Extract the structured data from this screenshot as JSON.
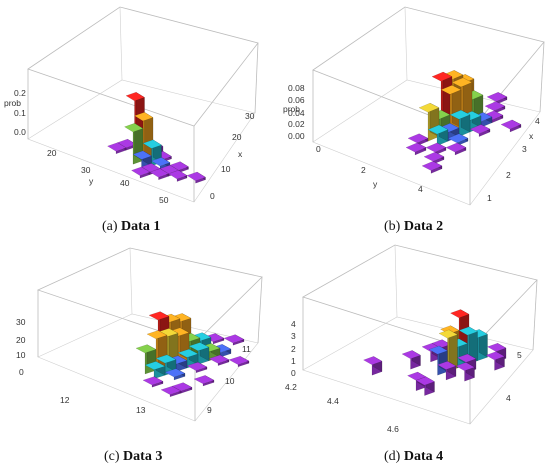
{
  "figure": {
    "panels": [
      {
        "id": "a",
        "caption_letter": "(a)",
        "caption_title": "Data 1"
      },
      {
        "id": "b",
        "caption_letter": "(b)",
        "caption_title": "Data 2"
      },
      {
        "id": "c",
        "caption_letter": "(c)",
        "caption_title": "Data 3"
      },
      {
        "id": "d",
        "caption_letter": "(d)",
        "caption_title": "Data 4"
      }
    ]
  },
  "palette": {
    "red": "#e8231f",
    "orange": "#f2a11f",
    "yellow": "#d9c232",
    "green": "#77bb44",
    "cyan": "#22b8c9",
    "blue": "#4466dd",
    "purple": "#9933cc"
  },
  "chart_data": [
    {
      "type": "bar3d",
      "title": "(a) Data 1",
      "xlabel": "x",
      "ylabel": "y",
      "zlabel": "prob",
      "x_ticks": [
        "30",
        "20",
        "10",
        "0"
      ],
      "y_ticks": [
        "20",
        "30",
        "40",
        "50"
      ],
      "z_ticks": [
        "0.2",
        "0.1",
        "0.0"
      ],
      "zlim": [
        0,
        0.25
      ],
      "bars": [
        {
          "x": 3,
          "y": 4,
          "z": 0.22,
          "color": "red"
        },
        {
          "x": 4,
          "y": 4,
          "z": 0.01,
          "color": "purple"
        },
        {
          "x": 2,
          "y": 5,
          "z": 0.13,
          "color": "green"
        },
        {
          "x": 3,
          "y": 5,
          "z": 0.16,
          "color": "orange"
        },
        {
          "x": 4,
          "y": 5,
          "z": 0.03,
          "color": "purple"
        },
        {
          "x": 2,
          "y": 6,
          "z": 0.04,
          "color": "blue"
        },
        {
          "x": 3,
          "y": 6,
          "z": 0.07,
          "color": "cyan"
        },
        {
          "x": 4,
          "y": 6,
          "z": 0.01,
          "color": "purple"
        },
        {
          "x": 1,
          "y": 7,
          "z": 0.01,
          "color": "purple"
        },
        {
          "x": 2,
          "y": 7,
          "z": 0.01,
          "color": "purple"
        },
        {
          "x": 3,
          "y": 7,
          "z": 0.02,
          "color": "blue"
        },
        {
          "x": 2,
          "y": 8,
          "z": 0.01,
          "color": "purple"
        },
        {
          "x": 3,
          "y": 8,
          "z": 0.01,
          "color": "purple"
        },
        {
          "x": 4,
          "y": 8,
          "z": 0.01,
          "color": "purple"
        },
        {
          "x": 3,
          "y": 9,
          "z": 0.01,
          "color": "purple"
        },
        {
          "x": 4,
          "y": 10,
          "z": 0.01,
          "color": "purple"
        },
        {
          "x": 2,
          "y": 3,
          "z": 0.01,
          "color": "purple"
        },
        {
          "x": 3,
          "y": 3,
          "z": 0.01,
          "color": "purple"
        }
      ]
    },
    {
      "type": "bar3d",
      "title": "(b) Data 2",
      "xlabel": "x",
      "ylabel": "y",
      "zlabel": "prob",
      "x_ticks": [
        "4",
        "3",
        "2",
        "1"
      ],
      "y_ticks": [
        "0",
        "2",
        "4"
      ],
      "z_ticks": [
        "0.08",
        "0.06",
        "0.04",
        "0.02",
        "0.00"
      ],
      "zlim": [
        0,
        0.09
      ],
      "bars": [
        {
          "x": 6,
          "y": 4,
          "z": 0.08,
          "color": "red"
        },
        {
          "x": 7,
          "y": 4,
          "z": 0.075,
          "color": "orange"
        },
        {
          "x": 8,
          "y": 4,
          "z": 0.06,
          "color": "orange"
        },
        {
          "x": 4,
          "y": 5,
          "z": 0.05,
          "color": "yellow"
        },
        {
          "x": 5,
          "y": 5,
          "z": 0.03,
          "color": "green"
        },
        {
          "x": 6,
          "y": 5,
          "z": 0.065,
          "color": "orange"
        },
        {
          "x": 7,
          "y": 5,
          "z": 0.07,
          "color": "orange"
        },
        {
          "x": 8,
          "y": 5,
          "z": 0.04,
          "color": "green"
        },
        {
          "x": 4,
          "y": 6,
          "z": 0.02,
          "color": "cyan"
        },
        {
          "x": 5,
          "y": 6,
          "z": 0.015,
          "color": "blue"
        },
        {
          "x": 6,
          "y": 6,
          "z": 0.03,
          "color": "cyan"
        },
        {
          "x": 7,
          "y": 6,
          "z": 0.02,
          "color": "cyan"
        },
        {
          "x": 8,
          "y": 6,
          "z": 0.01,
          "color": "blue"
        },
        {
          "x": 9,
          "y": 6,
          "z": 0.005,
          "color": "purple"
        },
        {
          "x": 3,
          "y": 7,
          "z": 0.005,
          "color": "purple"
        },
        {
          "x": 5,
          "y": 7,
          "z": 0.005,
          "color": "blue"
        },
        {
          "x": 7,
          "y": 7,
          "z": 0.005,
          "color": "purple"
        },
        {
          "x": 2,
          "y": 8,
          "z": 0.005,
          "color": "purple"
        },
        {
          "x": 4,
          "y": 8,
          "z": 0.005,
          "color": "purple"
        },
        {
          "x": 10,
          "y": 5,
          "z": 0.005,
          "color": "purple"
        },
        {
          "x": 11,
          "y": 4,
          "z": 0.005,
          "color": "purple"
        },
        {
          "x": 3,
          "y": 5,
          "z": 0.005,
          "color": "purple"
        },
        {
          "x": 2,
          "y": 6,
          "z": 0.005,
          "color": "purple"
        },
        {
          "x": 1,
          "y": 9,
          "z": 0.005,
          "color": "purple"
        },
        {
          "x": 9,
          "y": 8,
          "z": 0.005,
          "color": "purple"
        }
      ]
    },
    {
      "type": "bar3d",
      "title": "(c) Data 3",
      "xlabel": "",
      "ylabel": "",
      "zlabel": "",
      "x_ticks": [
        "11",
        "10",
        "9"
      ],
      "y_ticks": [
        "12",
        "13"
      ],
      "z_ticks": [
        "30",
        "20",
        "10",
        "0"
      ],
      "zlim": [
        0,
        32
      ],
      "bars": [
        {
          "x": 5,
          "y": 4,
          "z": 28,
          "color": "red"
        },
        {
          "x": 6,
          "y": 4,
          "z": 24,
          "color": "orange"
        },
        {
          "x": 7,
          "y": 4,
          "z": 22,
          "color": "orange"
        },
        {
          "x": 4,
          "y": 5,
          "z": 21,
          "color": "orange"
        },
        {
          "x": 5,
          "y": 5,
          "z": 20,
          "color": "yellow"
        },
        {
          "x": 6,
          "y": 5,
          "z": 18,
          "color": "orange"
        },
        {
          "x": 3,
          "y": 5,
          "z": 14,
          "color": "green"
        },
        {
          "x": 7,
          "y": 5,
          "z": 12,
          "color": "green"
        },
        {
          "x": 8,
          "y": 5,
          "z": 10,
          "color": "cyan"
        },
        {
          "x": 3,
          "y": 6,
          "z": 6,
          "color": "cyan"
        },
        {
          "x": 4,
          "y": 6,
          "z": 8,
          "color": "cyan"
        },
        {
          "x": 5,
          "y": 6,
          "z": 5,
          "color": "blue"
        },
        {
          "x": 6,
          "y": 6,
          "z": 7,
          "color": "cyan"
        },
        {
          "x": 7,
          "y": 6,
          "z": 9,
          "color": "cyan"
        },
        {
          "x": 8,
          "y": 6,
          "z": 6,
          "color": "green"
        },
        {
          "x": 9,
          "y": 6,
          "z": 3,
          "color": "blue"
        },
        {
          "x": 2,
          "y": 7,
          "z": 1,
          "color": "purple"
        },
        {
          "x": 4,
          "y": 7,
          "z": 2,
          "color": "blue"
        },
        {
          "x": 6,
          "y": 7,
          "z": 1,
          "color": "purple"
        },
        {
          "x": 8,
          "y": 7,
          "z": 1,
          "color": "purple"
        },
        {
          "x": 10,
          "y": 4,
          "z": 1,
          "color": "purple"
        },
        {
          "x": 11,
          "y": 5,
          "z": 1,
          "color": "purple"
        },
        {
          "x": 2,
          "y": 9,
          "z": 1,
          "color": "purple"
        },
        {
          "x": 5,
          "y": 9,
          "z": 1,
          "color": "purple"
        },
        {
          "x": 9,
          "y": 8,
          "z": 1,
          "color": "purple"
        },
        {
          "x": 3,
          "y": 9,
          "z": 1,
          "color": "purple"
        }
      ]
    },
    {
      "type": "bar3d",
      "title": "(d) Data 4",
      "xlabel": "",
      "ylabel": "",
      "zlabel": "",
      "x_ticks": [
        "5",
        "4"
      ],
      "y_ticks": [
        "4.2",
        "4.4",
        "4.6"
      ],
      "z_ticks": [
        "4",
        "3",
        "2",
        "1",
        "0"
      ],
      "zlim": [
        0,
        4.6
      ],
      "bars": [
        {
          "x": 7,
          "y": 5,
          "z": 4.0,
          "color": "red"
        },
        {
          "x": 6,
          "y": 5,
          "z": 2.8,
          "color": "orange"
        },
        {
          "x": 5,
          "y": 6,
          "z": 3.2,
          "color": "yellow"
        },
        {
          "x": 7,
          "y": 6,
          "z": 2.8,
          "color": "cyan"
        },
        {
          "x": 6,
          "y": 6,
          "z": 2.0,
          "color": "cyan"
        },
        {
          "x": 8,
          "y": 6,
          "z": 2.2,
          "color": "cyan"
        },
        {
          "x": 4,
          "y": 6,
          "z": 2.0,
          "color": "blue"
        },
        {
          "x": 8,
          "y": 5,
          "z": 1.0,
          "color": "purple"
        },
        {
          "x": 6,
          "y": 4,
          "z": 1.0,
          "color": "purple"
        },
        {
          "x": 5,
          "y": 4,
          "z": 1.0,
          "color": "purple"
        },
        {
          "x": 4,
          "y": 7,
          "z": 1.0,
          "color": "purple"
        },
        {
          "x": 6,
          "y": 7,
          "z": 1.0,
          "color": "purple"
        },
        {
          "x": 9,
          "y": 7,
          "z": 1.0,
          "color": "purple"
        },
        {
          "x": 3,
          "y": 4,
          "z": 1.0,
          "color": "purple"
        },
        {
          "x": 1,
          "y": 7,
          "z": 1.0,
          "color": "purple"
        },
        {
          "x": 1,
          "y": 8,
          "z": 1.0,
          "color": "purple"
        },
        {
          "x": 0,
          "y": 3,
          "z": 1.0,
          "color": "purple"
        },
        {
          "x": 5,
          "y": 8,
          "z": 1.0,
          "color": "purple"
        },
        {
          "x": 8,
          "y": 8,
          "z": 1.0,
          "color": "purple"
        }
      ]
    }
  ]
}
